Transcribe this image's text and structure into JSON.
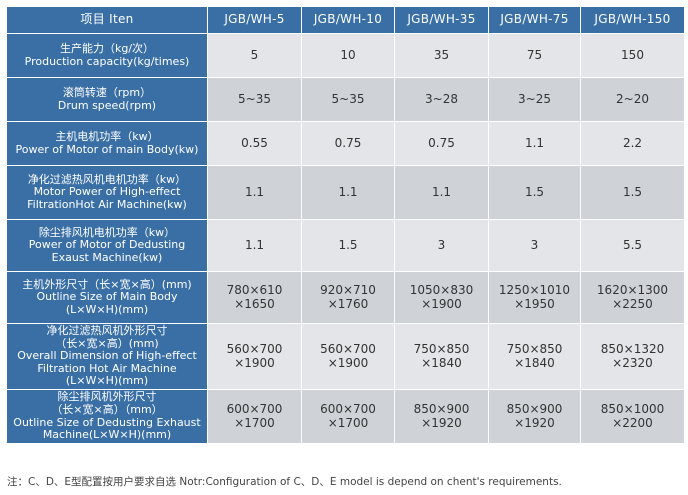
{
  "table": {
    "header": [
      "项目 Iten",
      "JGB/WH-5",
      "JGB/WH-10",
      "JGB/WH-35",
      "JGB/WH-75",
      "JGB/WH-150"
    ],
    "rows": [
      {
        "label": [
          "生产能力（kg/次）",
          "Production capacity(kg/times)"
        ],
        "cells": [
          [
            "5"
          ],
          [
            "10"
          ],
          [
            "35"
          ],
          [
            "75"
          ],
          [
            "150"
          ]
        ]
      },
      {
        "label": [
          "滚筒转速（rpm）",
          "Drum speed(rpm)"
        ],
        "cells": [
          [
            "5~35"
          ],
          [
            "5~35"
          ],
          [
            "3~28"
          ],
          [
            "3~25"
          ],
          [
            "2~20"
          ]
        ]
      },
      {
        "label": [
          "主机电机功率（kw）",
          "Power of Motor of main Body(kw)"
        ],
        "cells": [
          [
            "0.55"
          ],
          [
            "0.75"
          ],
          [
            "0.75"
          ],
          [
            "1.1"
          ],
          [
            "2.2"
          ]
        ]
      },
      {
        "label": [
          "净化过滤热风机电机功率（kw）",
          "Motor Power of High-effect",
          "FiltrationHot Air Machine(kw)"
        ],
        "cells": [
          [
            "1.1"
          ],
          [
            "1.1"
          ],
          [
            "1.1"
          ],
          [
            "1.5"
          ],
          [
            "1.5"
          ]
        ]
      },
      {
        "label": [
          "除尘排风机电机功率（kw）",
          "Power of Motor of Dedusting",
          "Exaust Machine(kw)"
        ],
        "cells": [
          [
            "1.1"
          ],
          [
            "1.5"
          ],
          [
            "3"
          ],
          [
            "3"
          ],
          [
            "5.5"
          ]
        ]
      },
      {
        "label": [
          "主机外形尺寸（长×宽×高）(mm)",
          "Outline Size of Main Body",
          "(L×W×H)(mm)"
        ],
        "cells": [
          [
            "780×610",
            "×1650"
          ],
          [
            "920×710",
            "×1760"
          ],
          [
            "1050×830",
            "×1900"
          ],
          [
            "1250×1010",
            "×1950"
          ],
          [
            "1620×1300",
            "×2250"
          ]
        ]
      },
      {
        "label": [
          "净化过滤热风机外形尺寸",
          "（长×宽×高）(mm)",
          "Overall Dimension of High-effect",
          "Filtration Hot Air Machine",
          "(L×W×H)(mm)"
        ],
        "cells": [
          [
            "560×700",
            "×1900"
          ],
          [
            "560×700",
            "×1900"
          ],
          [
            "750×850",
            "×1840"
          ],
          [
            "750×850",
            "×1840"
          ],
          [
            "850×1320",
            "×2320"
          ]
        ]
      },
      {
        "label": [
          "除尘排风机外形尺寸",
          "（长×宽×高）（mm）",
          "Outline Size of Dedusting Exhaust",
          "Machine(L×W×H)(mm)"
        ],
        "cells": [
          [
            "600×700",
            "×1700"
          ],
          [
            "600×700",
            "×1700"
          ],
          [
            "850×900",
            "×1920"
          ],
          [
            "850×900",
            "×1920"
          ],
          [
            "850×1000",
            "×2200"
          ]
        ]
      }
    ]
  },
  "note": "注：C、D、E型配置按用户要求自选 Notr:Configuration of C、D、E model is depend on chent's requirements."
}
